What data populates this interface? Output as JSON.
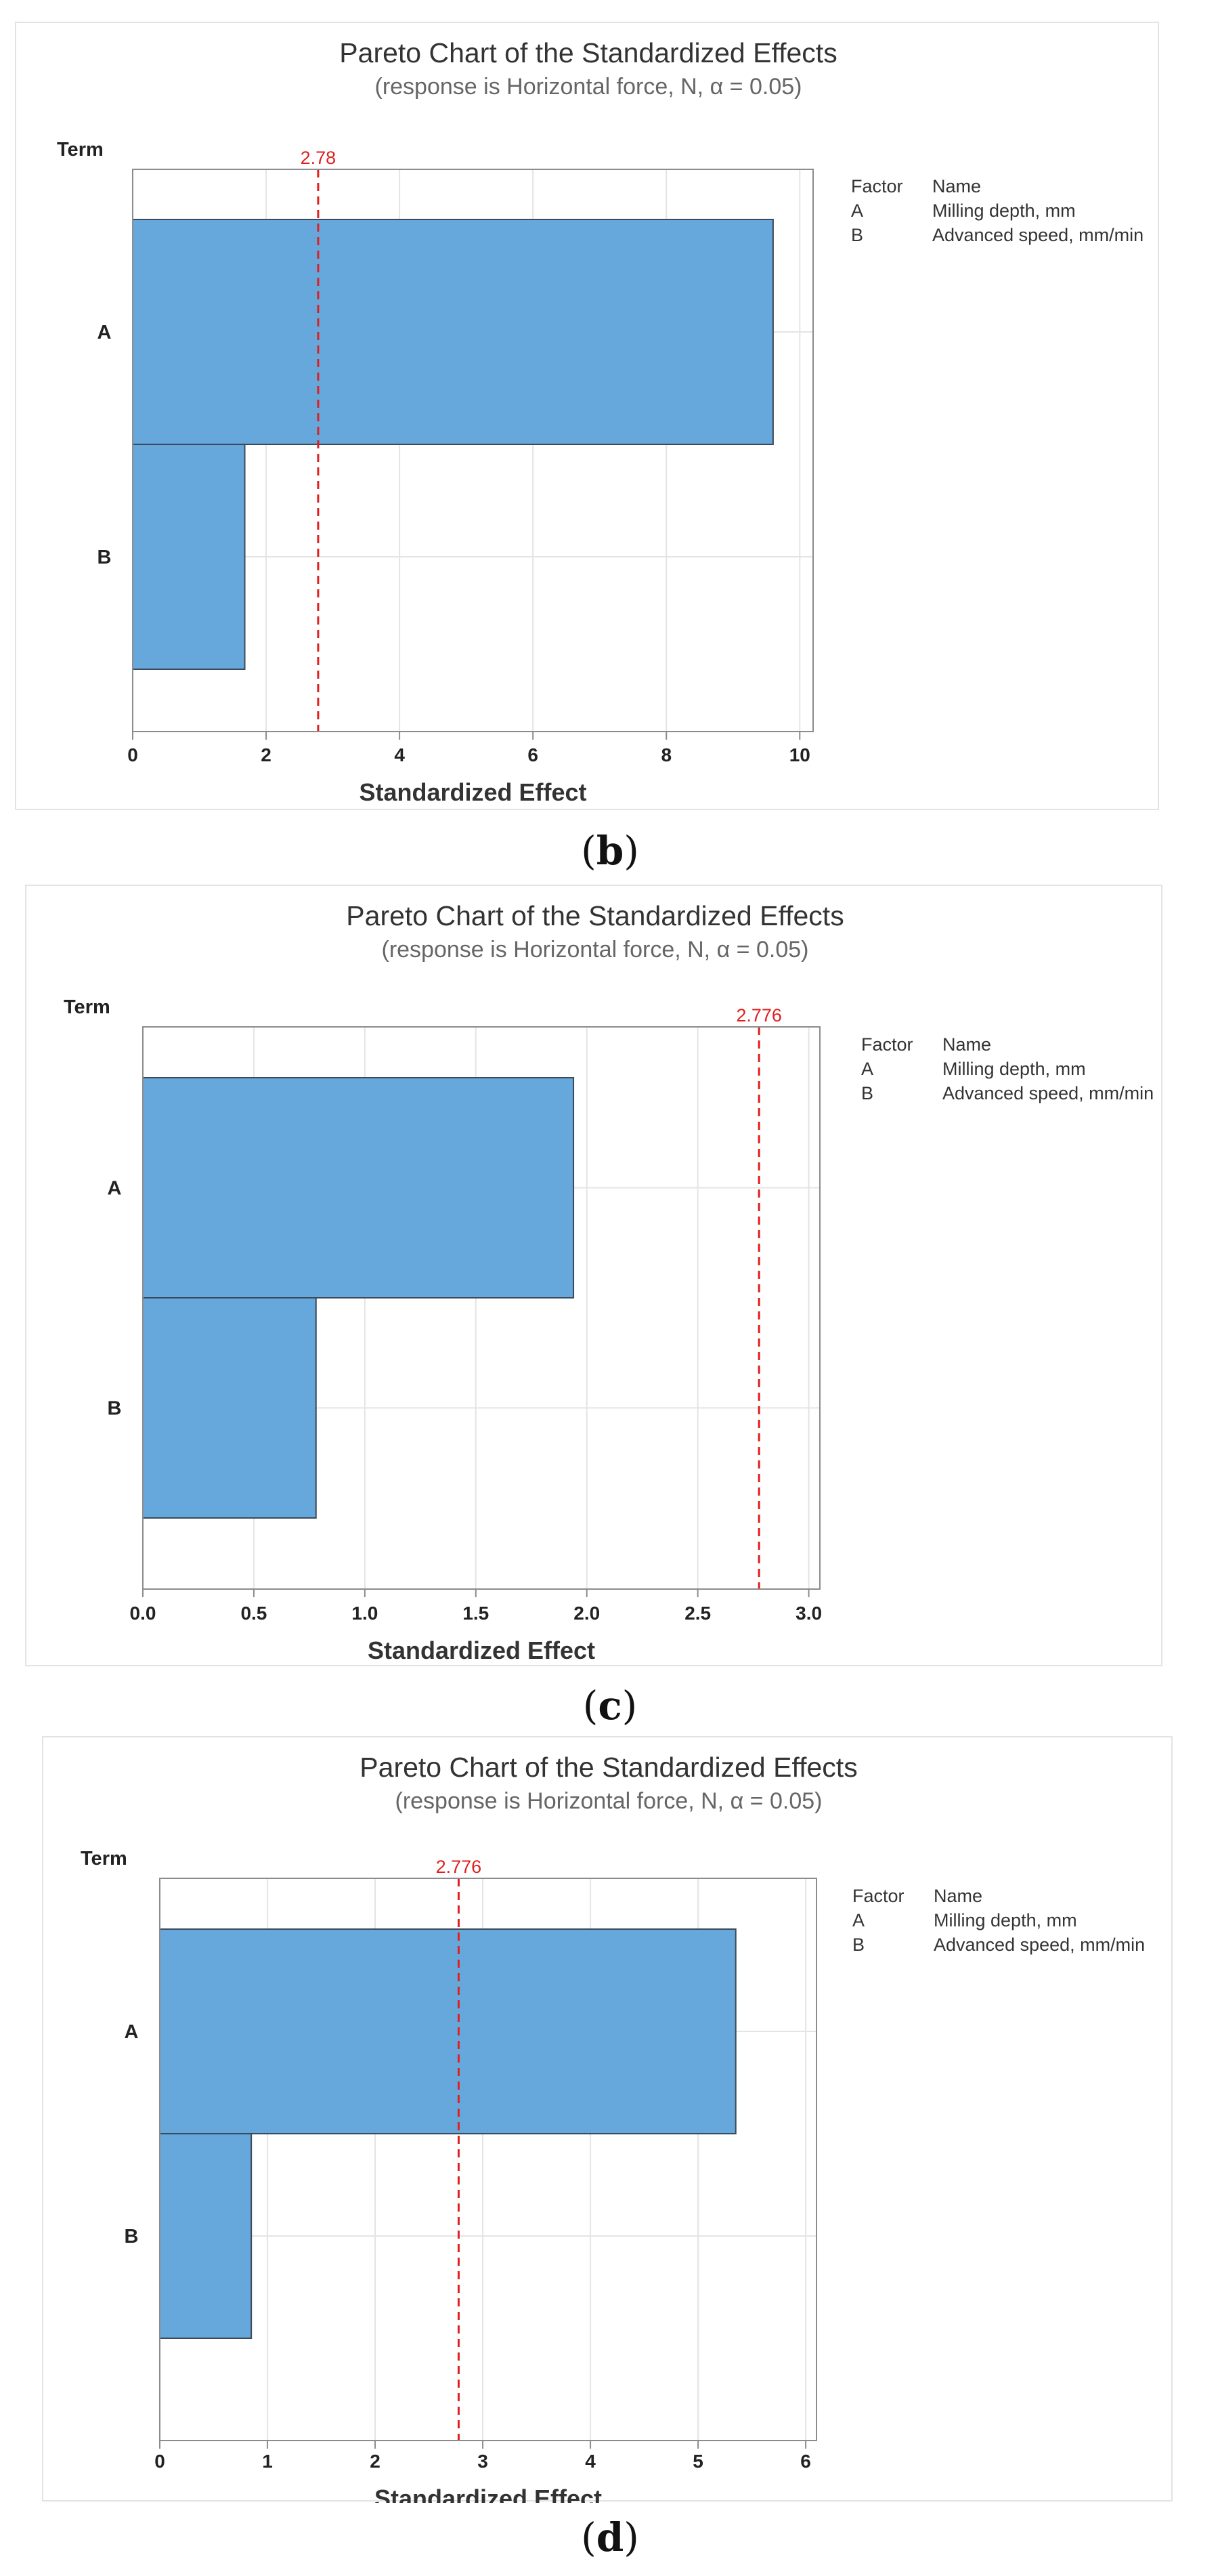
{
  "chart_data": [
    {
      "id": "b",
      "type": "bar",
      "orientation": "horizontal",
      "title": "Pareto Chart of the Standardized Effects",
      "subtitle": "(response is Horizontal force, N, α = 0.05)",
      "ylabel": "Term",
      "xlabel": "Standardized Effect",
      "categories": [
        "A",
        "B"
      ],
      "values": [
        9.6,
        1.68
      ],
      "critical_value": 2.78,
      "critical_label": "2.78",
      "xlim": [
        0,
        10.2
      ],
      "xticks": [
        0,
        2,
        4,
        6,
        8,
        10
      ],
      "xtick_labels": [
        "0",
        "2",
        "4",
        "6",
        "8",
        "10"
      ],
      "legend": {
        "header": [
          "Factor",
          "Name"
        ],
        "rows": [
          [
            "A",
            "Milling depth, mm"
          ],
          [
            "B",
            "Advanced speed, mm/min"
          ]
        ]
      },
      "bar_color": "#66a8dc",
      "line_color": "#e02020",
      "panel_label": "b"
    },
    {
      "id": "c",
      "type": "bar",
      "orientation": "horizontal",
      "title": "Pareto Chart of the Standardized Effects",
      "subtitle": "(response is Horizontal force, N, α = 0.05)",
      "ylabel": "Term",
      "xlabel": "Standardized Effect",
      "categories": [
        "A",
        "B"
      ],
      "values": [
        1.94,
        0.78
      ],
      "critical_value": 2.776,
      "critical_label": "2.776",
      "xlim": [
        0,
        3.05
      ],
      "xticks": [
        0,
        0.5,
        1.0,
        1.5,
        2.0,
        2.5,
        3.0
      ],
      "xtick_labels": [
        "0.0",
        "0.5",
        "1.0",
        "1.5",
        "2.0",
        "2.5",
        "3.0"
      ],
      "legend": {
        "header": [
          "Factor",
          "Name"
        ],
        "rows": [
          [
            "A",
            "Milling depth, mm"
          ],
          [
            "B",
            "Advanced speed, mm/min"
          ]
        ]
      },
      "bar_color": "#66a8dc",
      "line_color": "#e02020",
      "panel_label": "c"
    },
    {
      "id": "d",
      "type": "bar",
      "orientation": "horizontal",
      "title": "Pareto Chart of the Standardized Effects",
      "subtitle": "(response is Horizontal force, N, α = 0.05)",
      "ylabel": "Term",
      "xlabel": "Standardized Effect",
      "categories": [
        "A",
        "B"
      ],
      "values": [
        5.35,
        0.85
      ],
      "critical_value": 2.776,
      "critical_label": "2.776",
      "xlim": [
        0,
        6.1
      ],
      "xticks": [
        0,
        1,
        2,
        3,
        4,
        5,
        6
      ],
      "xtick_labels": [
        "0",
        "1",
        "2",
        "3",
        "4",
        "5",
        "6"
      ],
      "legend": {
        "header": [
          "Factor",
          "Name"
        ],
        "rows": [
          [
            "A",
            "Milling depth, mm"
          ],
          [
            "B",
            "Advanced speed, mm/min"
          ]
        ]
      },
      "bar_color": "#66a8dc",
      "line_color": "#e02020",
      "panel_label": "d"
    }
  ]
}
